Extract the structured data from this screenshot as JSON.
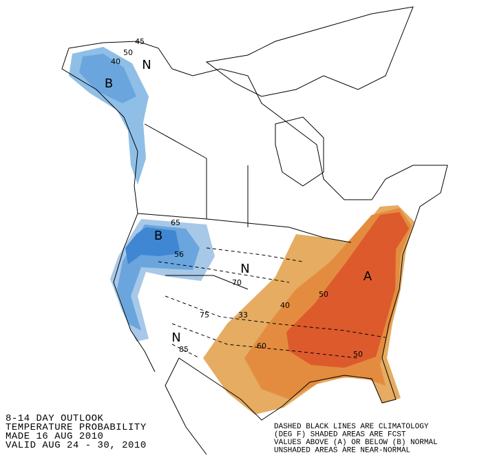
{
  "map": {
    "region_labels": [
      "B",
      "N",
      "B",
      "N",
      "N",
      "A"
    ],
    "contour_labels": [
      45,
      50,
      40,
      65,
      56,
      70,
      75,
      85,
      33,
      40,
      50,
      60,
      50
    ]
  },
  "caption": {
    "lines": [
      "8-14 DAY OUTLOOK",
      "TEMPERATURE PROBABILITY",
      "MADE  16 AUG 2010",
      "VALID  AUG 24 - 30, 2010"
    ]
  },
  "legend_note": {
    "lines": [
      "DASHED BLACK LINES ARE CLIMATOLOGY",
      "(DEG F) SHADED AREAS ARE FCST",
      "VALUES ABOVE (A) OR BELOW (B) NORMAL",
      "UNSHADED AREAS ARE NEAR-NORMAL"
    ]
  }
}
